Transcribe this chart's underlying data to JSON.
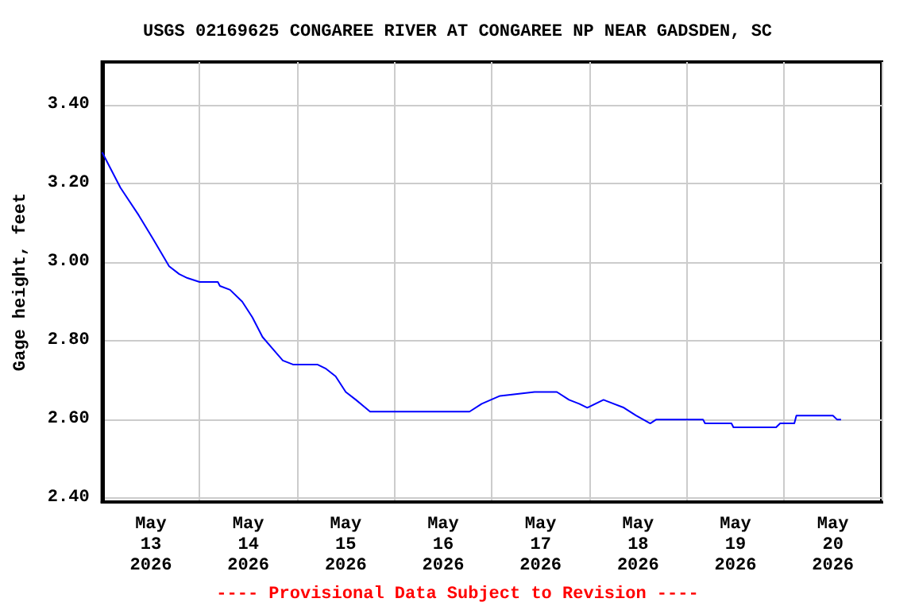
{
  "chart_data": {
    "type": "line",
    "title": "USGS 02169625 CONGAREE RIVER AT CONGAREE NP NEAR GADSDEN, SC",
    "ylabel": "Gage height, feet",
    "annotations": [
      "---- Provisional Data Subject to Revision ----"
    ],
    "x": [
      "2026-05-13T00:00",
      "2026-05-13T04:30",
      "2026-05-13T09:00",
      "2026-05-13T12:30",
      "2026-05-13T16:30",
      "2026-05-13T19:00",
      "2026-05-13T21:00",
      "2026-05-14T00:00",
      "2026-05-14T04:30",
      "2026-05-14T05:00",
      "2026-05-14T07:30",
      "2026-05-14T10:30",
      "2026-05-14T13:00",
      "2026-05-14T15:30",
      "2026-05-14T18:00",
      "2026-05-14T20:30",
      "2026-05-14T23:00",
      "2026-05-15T05:00",
      "2026-05-15T07:00",
      "2026-05-15T09:30",
      "2026-05-15T12:00",
      "2026-05-15T14:30",
      "2026-05-15T18:00",
      "2026-05-16T18:30",
      "2026-05-16T21:30",
      "2026-05-17T02:00",
      "2026-05-17T10:30",
      "2026-05-17T16:00",
      "2026-05-17T19:00",
      "2026-05-17T21:30",
      "2026-05-17T23:30",
      "2026-05-18T03:30",
      "2026-05-18T08:30",
      "2026-05-18T11:30",
      "2026-05-18T15:00",
      "2026-05-18T16:30",
      "2026-05-19T04:00",
      "2026-05-19T04:30",
      "2026-05-19T11:00",
      "2026-05-19T11:30",
      "2026-05-19T16:30",
      "2026-05-19T22:00",
      "2026-05-19T23:00",
      "2026-05-20T02:30",
      "2026-05-20T03:00",
      "2026-05-20T12:00",
      "2026-05-20T13:00",
      "2026-05-20T14:00"
    ],
    "series": [
      {
        "color": "#0000ff",
        "values": [
          3.28,
          3.19,
          3.12,
          3.06,
          2.99,
          2.97,
          2.96,
          2.95,
          2.95,
          2.94,
          2.93,
          2.9,
          2.86,
          2.81,
          2.78,
          2.75,
          2.74,
          2.74,
          2.73,
          2.71,
          2.67,
          2.65,
          2.62,
          2.62,
          2.64,
          2.66,
          2.67,
          2.67,
          2.65,
          2.64,
          2.63,
          2.65,
          2.63,
          2.61,
          2.59,
          2.6,
          2.6,
          2.59,
          2.59,
          2.58,
          2.58,
          2.58,
          2.59,
          2.59,
          2.61,
          2.61,
          2.6,
          2.6
        ]
      }
    ],
    "xlim": [
      "2026-05-13T00:00",
      "2026-05-21T00:00"
    ],
    "xticks": [
      {
        "value": "2026-05-13T00:00",
        "label": null
      },
      {
        "value": "2026-05-13T12:00",
        "label": "May\n13\n2026"
      },
      {
        "value": "2026-05-14T00:00",
        "label": null
      },
      {
        "value": "2026-05-14T12:00",
        "label": "May\n14\n2026"
      },
      {
        "value": "2026-05-15T00:00",
        "label": null
      },
      {
        "value": "2026-05-15T12:00",
        "label": "May\n15\n2026"
      },
      {
        "value": "2026-05-16T00:00",
        "label": null
      },
      {
        "value": "2026-05-16T12:00",
        "label": "May\n16\n2026"
      },
      {
        "value": "2026-05-17T00:00",
        "label": null
      },
      {
        "value": "2026-05-17T12:00",
        "label": "May\n17\n2026"
      },
      {
        "value": "2026-05-18T00:00",
        "label": null
      },
      {
        "value": "2026-05-18T12:00",
        "label": "May\n18\n2026"
      },
      {
        "value": "2026-05-19T00:00",
        "label": null
      },
      {
        "value": "2026-05-19T12:00",
        "label": "May\n19\n2026"
      },
      {
        "value": "2026-05-20T00:00",
        "label": null
      },
      {
        "value": "2026-05-20T12:00",
        "label": "May\n20\n2026"
      },
      {
        "value": "2026-05-21T00:00",
        "label": null
      }
    ],
    "ylim": [
      2.39,
      3.51
    ],
    "yticks": [
      {
        "value": 2.4,
        "label": "2.40"
      },
      {
        "value": 2.6,
        "label": "2.60"
      },
      {
        "value": 2.8,
        "label": "2.80"
      },
      {
        "value": 3.0,
        "label": "3.00"
      },
      {
        "value": 3.2,
        "label": "3.20"
      },
      {
        "value": 3.4,
        "label": "3.40"
      }
    ],
    "grid": true,
    "marker": "none",
    "line_style": "solid"
  }
}
